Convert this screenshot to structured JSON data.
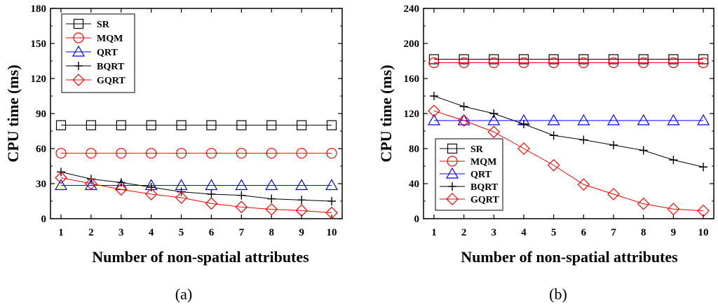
{
  "chart_data": [
    {
      "type": "line",
      "panel": "(a)",
      "caption": "(a)",
      "xlabel": "Number of  non-spatial attributes",
      "ylabel": "CPU time (ms)",
      "x": [
        1,
        2,
        3,
        4,
        5,
        6,
        7,
        8,
        9,
        10
      ],
      "xlim": [
        0.65,
        10.35
      ],
      "ylim": [
        0,
        180
      ],
      "yticks": [
        0,
        30,
        60,
        90,
        120,
        150,
        180
      ],
      "legend_position": "top-left",
      "series": [
        {
          "name": "SR",
          "marker": "square",
          "color": "#000000",
          "values": [
            80,
            80,
            80,
            80,
            80,
            80,
            80,
            80,
            80,
            80
          ]
        },
        {
          "name": "MQM",
          "marker": "circle",
          "color": "#ff0000",
          "values": [
            56,
            56,
            56,
            56,
            56,
            56,
            56,
            56,
            56,
            56
          ]
        },
        {
          "name": "QRT",
          "marker": "triangle",
          "color": "#0000ff",
          "values": [
            28.5,
            28.5,
            28.5,
            28.5,
            28.5,
            28.5,
            28.5,
            28.5,
            28.5,
            28.5
          ]
        },
        {
          "name": "BQRT",
          "marker": "plus",
          "color": "#000000",
          "values": [
            40,
            34,
            31,
            27,
            23,
            21,
            20,
            17,
            16,
            15
          ]
        },
        {
          "name": "GQRT",
          "marker": "diamond",
          "color": "#ff0000",
          "values": [
            35,
            30,
            25,
            21,
            18,
            13,
            10,
            8,
            7,
            5
          ]
        }
      ]
    },
    {
      "type": "line",
      "panel": "(b)",
      "caption": "(b)",
      "xlabel": "Number of  non-spatial attributes",
      "ylabel": "CPU time (ms)",
      "x": [
        1,
        2,
        3,
        4,
        5,
        6,
        7,
        8,
        9,
        10
      ],
      "xlim": [
        0.65,
        10.35
      ],
      "ylim": [
        0,
        240
      ],
      "yticks": [
        0,
        40,
        80,
        120,
        160,
        200,
        240
      ],
      "legend_position": "bottom-left",
      "series": [
        {
          "name": "SR",
          "marker": "square",
          "color": "#000000",
          "values": [
            182,
            182,
            182,
            182,
            182,
            182,
            182,
            182,
            182,
            182
          ]
        },
        {
          "name": "MQM",
          "marker": "circle",
          "color": "#ff0000",
          "values": [
            178,
            178,
            178,
            178,
            178,
            178,
            178,
            178,
            178,
            178
          ]
        },
        {
          "name": "QRT",
          "marker": "triangle",
          "color": "#0000ff",
          "values": [
            112,
            112,
            112,
            112,
            112,
            112,
            112,
            112,
            112,
            112
          ]
        },
        {
          "name": "BQRT",
          "marker": "plus",
          "color": "#000000",
          "values": [
            140,
            128,
            120,
            108,
            95,
            90,
            84,
            78,
            67,
            59
          ]
        },
        {
          "name": "GQRT",
          "marker": "diamond",
          "color": "#ff0000",
          "values": [
            123,
            112,
            99,
            80,
            61,
            39,
            28,
            17,
            11,
            9
          ]
        }
      ]
    }
  ]
}
